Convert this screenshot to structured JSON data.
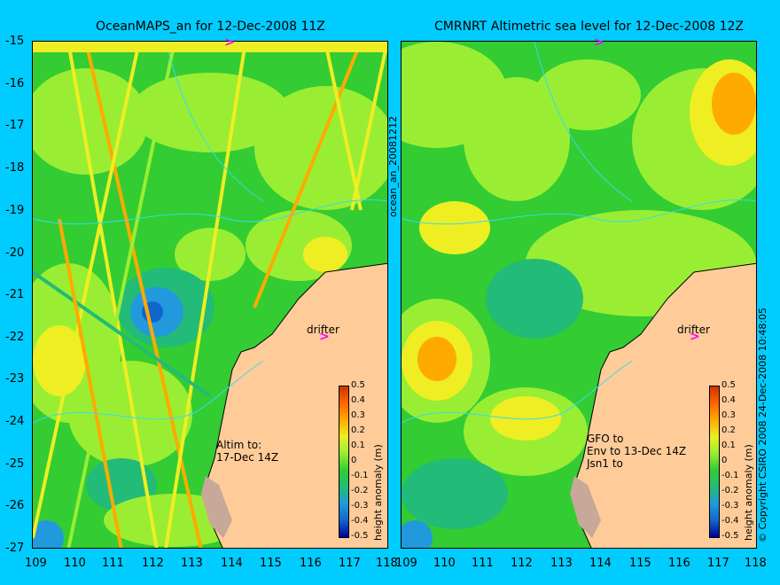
{
  "left_panel": {
    "title": "OceanMAPS_an for 12-Dec-2008 11Z",
    "annotation_lines": [
      "Altim to:",
      "17-Dec 14Z"
    ],
    "drifter_label": "drifter"
  },
  "right_panel": {
    "title": "CMRNRT Altimetric sea level  for 12-Dec-2008 12Z",
    "annotation_lines": [
      "GFO to",
      "Env to 13-Dec 14Z",
      "Jsn1 to"
    ],
    "drifter_label": "drifter"
  },
  "side_label": "ocean_an_20081212",
  "copyright": "© Copyright CSIRO 2008   24-Dec-2008 10:48:05",
  "y_ticks": [
    "-15",
    "-16",
    "-17",
    "-18",
    "-19",
    "-20",
    "-21",
    "-22",
    "-23",
    "-24",
    "-25",
    "-26",
    "-27"
  ],
  "x_ticks": [
    "109",
    "110",
    "111",
    "112",
    "113",
    "114",
    "115",
    "116",
    "117",
    "118"
  ],
  "colorbar": {
    "label": "height anomaly (m)",
    "ticks": [
      "0.5",
      "0.4",
      "0.3",
      "0.2",
      "0.1",
      "0",
      "-0.1",
      "-0.2",
      "-0.3",
      "-0.4",
      "-0.5"
    ]
  },
  "colors": {
    "background": "#00CCFF",
    "land": "#FFCC99",
    "coast_shelf": "#C8A898",
    "sea_green": "#33CC33",
    "sea_light": "#99EE33",
    "sea_yellow": "#EEEE22",
    "sea_orange": "#FFAA00",
    "sea_blue": "#2299DD",
    "drifter": "#FF00FF"
  }
}
